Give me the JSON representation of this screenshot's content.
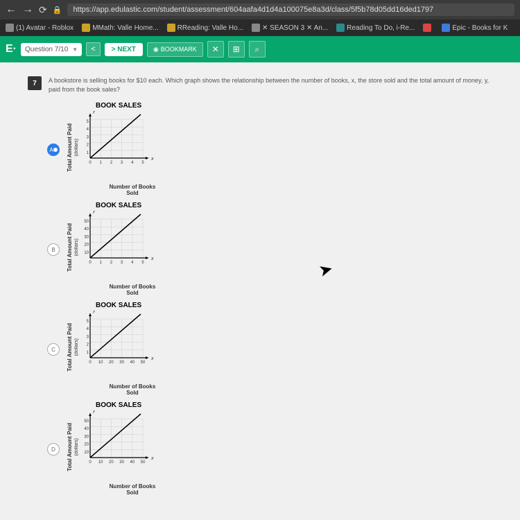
{
  "browser": {
    "url": "https://app.edulastic.com/student/assessment/604aafa4d1d4a100075e8a3d/class/5f5b78d05dd16ded1797"
  },
  "bookmarks": [
    {
      "label": "(1) Avatar - Roblox",
      "color": "gray"
    },
    {
      "label": "MMath: Valle Home...",
      "color": "yellow"
    },
    {
      "label": "RReading: Valle Ho...",
      "color": "yellow"
    },
    {
      "label": "✕ SEASON 3 ✕ An...",
      "color": "gray"
    },
    {
      "label": "Reading To Do, i-Re...",
      "color": "teal"
    },
    {
      "label": "",
      "color": "red"
    },
    {
      "label": "Epic - Books for K",
      "color": "blue"
    }
  ],
  "header": {
    "logo": "E·",
    "question_label": "Question 7/10",
    "next": "NEXT",
    "bookmark": "BOOKMARK"
  },
  "question": {
    "number": "7",
    "text": "A bookstore is selling books for $10 each. Which graph shows the relationship between the number of books, x, the store sold and the total amount of money, y, paid from the book sales?"
  },
  "graphs": {
    "title": "BOOK SALES",
    "y_label": "Total Amount Paid",
    "y_sublabel": "(dollars)",
    "x_label": "Number of Books",
    "x_sublabel": "Sold",
    "options": [
      {
        "id": "A",
        "selected": true,
        "y_ticks": [
          "5",
          "4",
          "3",
          "2",
          "1"
        ],
        "x_ticks": [
          "0",
          "1",
          "2",
          "3",
          "4",
          "5"
        ],
        "line_end_x": 85,
        "line_end_y": 5
      },
      {
        "id": "B",
        "selected": false,
        "y_ticks": [
          "50",
          "40",
          "30",
          "20",
          "10"
        ],
        "x_ticks": [
          "0",
          "1",
          "2",
          "3",
          "4",
          "5"
        ],
        "line_end_x": 85,
        "line_end_y": 5
      },
      {
        "id": "C",
        "selected": false,
        "y_ticks": [
          "5",
          "4",
          "3",
          "2",
          "1"
        ],
        "x_ticks": [
          "0",
          "10",
          "20",
          "30",
          "40",
          "50"
        ],
        "line_end_x": 85,
        "line_end_y": 5
      },
      {
        "id": "D",
        "selected": false,
        "y_ticks": [
          "50",
          "40",
          "30",
          "20",
          "10"
        ],
        "x_ticks": [
          "0",
          "10",
          "20",
          "30",
          "40",
          "50"
        ],
        "line_end_x": 85,
        "line_end_y": 5
      }
    ],
    "grid_color": "#cccccc",
    "axis_color": "#000000",
    "line_color": "#000000",
    "bg_color": "#ffffff"
  }
}
